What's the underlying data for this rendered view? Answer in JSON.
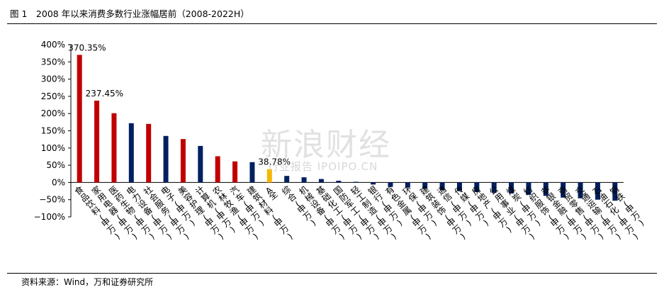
{
  "header": {
    "title": "图 1　2008 年以来消费多数行业涨幅居前（2008-2022H）"
  },
  "footer": {
    "source": "资料来源：Wind，万和证券研究所"
  },
  "watermark": {
    "main": "新浪财经",
    "sub": "行业报告 IPOIPO.CN"
  },
  "colors": {
    "red": "#c00000",
    "navy": "#002060",
    "gold": "#f5b800"
  },
  "chart_data": {
    "type": "bar",
    "title": "",
    "xlabel": "",
    "ylabel": "",
    "ylim": [
      -100,
      400
    ],
    "yticks": [
      -100,
      -50,
      0,
      50,
      100,
      150,
      200,
      250,
      300,
      350,
      400
    ],
    "ytick_labels": [
      "−100%",
      "−50%",
      "0%",
      "50%",
      "100%",
      "150%",
      "200%",
      "250%",
      "300%",
      "350%",
      "400%"
    ],
    "grid": false,
    "legend": "none",
    "categories": [
      "食品饮料(申万)",
      "家用电器(申万)",
      "医药生物(申万)",
      "电力设备(申万)",
      "社会服务(申万)",
      "电子(申万)",
      "美容护理(申万)",
      "计算机(申万)",
      "农林牧渔(申万)",
      "汽车(申万)",
      "建筑材料(申万)",
      "A全",
      "综合(申万)",
      "机械设备(申万)",
      "基础化工(申万)",
      "国防军工(申万)",
      "轻工制造(申万)",
      "银行(申万)",
      "有色金属(申万)",
      "环保(申万)",
      "建筑装饰(申万)",
      "通信(申万)",
      "传媒(申万)",
      "房地产(申万)",
      "公用事业(申万)",
      "煤炭(申万)",
      "纺织服饰(申万)",
      "非银金融(申万)",
      "商贸零售(申万)",
      "交通运输(申万)",
      "石油石化(申万)",
      "钢铁(申万)"
    ],
    "values": [
      370.35,
      237.45,
      201,
      172,
      170,
      135,
      126,
      106,
      76,
      61,
      59,
      38.78,
      19,
      15,
      10,
      5,
      2,
      -6,
      -13,
      -15,
      -18,
      -22,
      -25,
      -28,
      -30,
      -32,
      -36,
      -39,
      -44,
      -46,
      -50,
      -53
    ],
    "bar_colors": [
      "red",
      "red",
      "red",
      "navy",
      "red",
      "navy",
      "red",
      "navy",
      "red",
      "red",
      "navy",
      "gold",
      "navy",
      "navy",
      "navy",
      "navy",
      "navy",
      "navy",
      "navy",
      "navy",
      "navy",
      "navy",
      "navy",
      "navy",
      "navy",
      "navy",
      "navy",
      "navy",
      "navy",
      "navy",
      "navy",
      "navy"
    ],
    "data_labels": [
      {
        "index": 0,
        "text": "370.35%"
      },
      {
        "index": 1,
        "text": "237.45%"
      },
      {
        "index": 11,
        "text": "38.78%"
      }
    ]
  }
}
